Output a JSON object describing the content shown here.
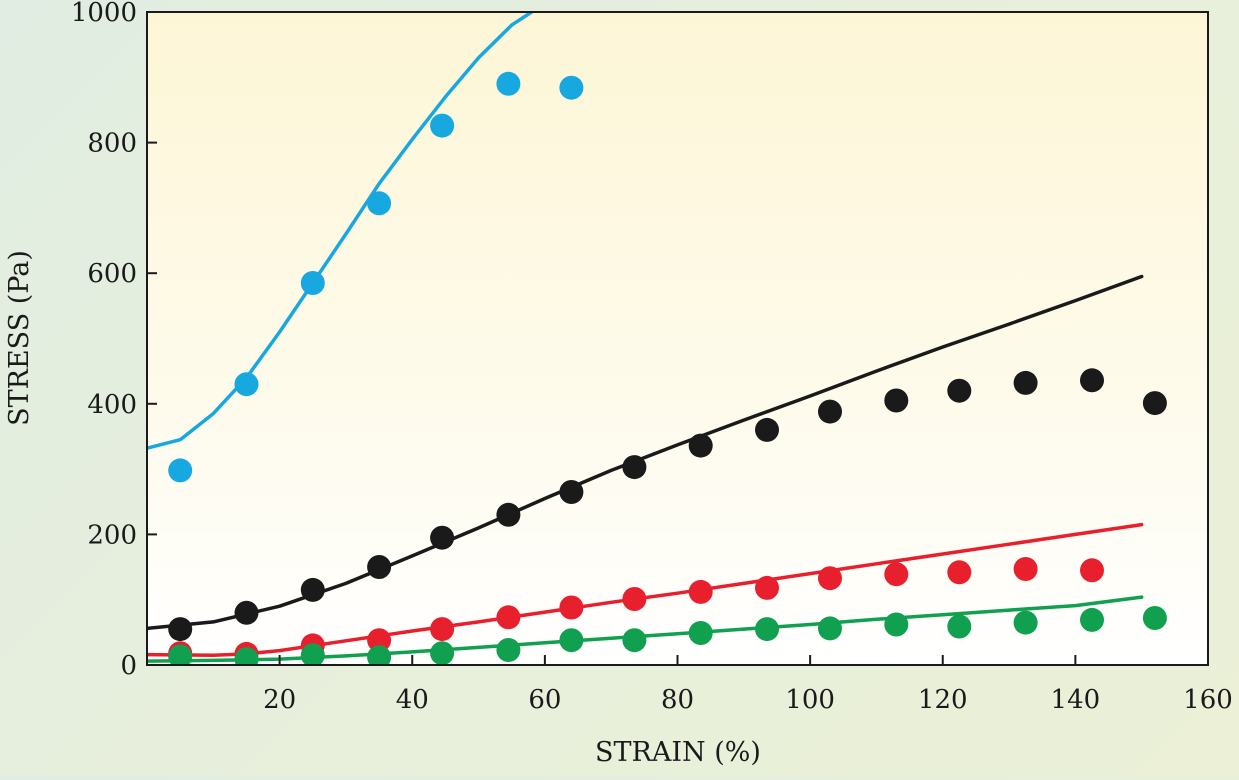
{
  "chart_data": {
    "type": "scatter",
    "title": "",
    "xlabel": "STRAIN (%)",
    "ylabel": "STRESS (Pa)",
    "xlim": [
      0,
      160
    ],
    "ylim": [
      0,
      1000
    ],
    "x_ticks": [
      20,
      40,
      60,
      80,
      100,
      120,
      140,
      160
    ],
    "y_ticks": [
      0,
      200,
      400,
      600,
      800,
      1000
    ],
    "grid": false,
    "legend": "none",
    "series": [
      {
        "color": "#18a8e0",
        "points": {
          "x": [
            5,
            15,
            25,
            35,
            44.5,
            54.5,
            64
          ],
          "y": [
            298,
            430,
            585,
            707,
            826,
            890,
            884
          ]
        },
        "fit": {
          "x": [
            0,
            5,
            10,
            15,
            20,
            25,
            30,
            35,
            40,
            45,
            50,
            55,
            58
          ],
          "y": [
            332,
            345,
            385,
            440,
            510,
            585,
            660,
            737,
            805,
            870,
            930,
            980,
            1000
          ]
        }
      },
      {
        "color": "#1a1a1a",
        "points": {
          "x": [
            5,
            15,
            25,
            35,
            44.5,
            54.5,
            64,
            73.5,
            83.5,
            93.5,
            103,
            113,
            122.5,
            132.5,
            142.5,
            152
          ],
          "y": [
            55,
            80,
            115,
            150,
            195,
            230,
            265,
            303,
            336,
            360,
            388,
            405,
            420,
            432,
            436,
            401
          ]
        },
        "fit": {
          "x": [
            0,
            10,
            20,
            30,
            40,
            50,
            60,
            70,
            80,
            90,
            100,
            110,
            120,
            130,
            140,
            150
          ],
          "y": [
            56,
            66,
            90,
            125,
            167,
            210,
            255,
            298,
            337,
            375,
            412,
            450,
            487,
            522,
            558,
            595
          ]
        }
      },
      {
        "color": "#e8202e",
        "points": {
          "x": [
            5,
            15,
            25,
            35,
            44.5,
            54.5,
            64,
            73.5,
            83.5,
            93.5,
            103,
            113,
            122.5,
            132.5,
            142.5
          ],
          "y": [
            18,
            17,
            30,
            38,
            55,
            73,
            88,
            101,
            112,
            118,
            133,
            139,
            142,
            147,
            145
          ]
        },
        "fit": {
          "x": [
            0,
            10,
            15,
            20,
            30,
            40,
            50,
            60,
            70,
            80,
            90,
            100,
            110,
            120,
            130,
            140,
            150
          ],
          "y": [
            16,
            15,
            17,
            22,
            37,
            52,
            66,
            81,
            96,
            110,
            125,
            140,
            155,
            170,
            185,
            200,
            215
          ]
        }
      },
      {
        "color": "#10a050",
        "points": {
          "x": [
            5,
            15,
            25,
            35,
            44.5,
            54.5,
            64,
            73.5,
            83.5,
            93.5,
            103,
            113,
            122.5,
            132.5,
            142.5,
            152
          ],
          "y": [
            13,
            9,
            15,
            12,
            18,
            23,
            38,
            38,
            49,
            55,
            56,
            62,
            59,
            65,
            69,
            72
          ]
        },
        "fit": {
          "x": [
            0,
            10,
            20,
            30,
            40,
            50,
            60,
            70,
            80,
            90,
            100,
            110,
            120,
            130,
            140,
            150
          ],
          "y": [
            6,
            7,
            9,
            14,
            20,
            27,
            34,
            41,
            48,
            55,
            62,
            70,
            77,
            84,
            91,
            104
          ]
        }
      }
    ]
  }
}
